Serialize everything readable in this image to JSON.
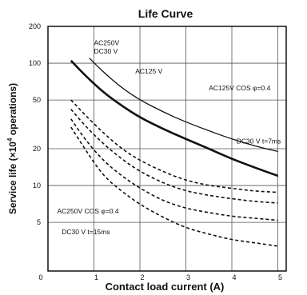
{
  "chart_data": {
    "type": "line",
    "title": "Life Curve",
    "xlabel": "Contact load current (A)",
    "ylabel_prefix": "Service life (×10",
    "ylabel_exp": "4",
    "ylabel_suffix": " operations)",
    "xlim": [
      0,
      6
    ],
    "ylim": [
      0,
      200
    ],
    "yscale": "log-like",
    "x_ticks": [
      "0",
      "1",
      "2",
      "3",
      "4",
      "5"
    ],
    "y_ticks": [
      "5",
      "10",
      "20",
      "50",
      "100",
      "200"
    ],
    "y_tick_values": [
      5,
      10,
      20,
      50,
      100,
      200
    ],
    "grid": true,
    "series": [
      {
        "name": "AC250V DC30 V",
        "style": "solid",
        "weight": "bold",
        "x": [
          0.5,
          0.8,
          1.2,
          1.6,
          2.0,
          2.5,
          3.0,
          3.5,
          4.0,
          4.5,
          5.0
        ],
        "y": [
          105,
          80,
          58,
          45,
          36,
          29,
          24,
          20,
          16.5,
          14,
          12
        ]
      },
      {
        "name": "AC125 V",
        "style": "solid",
        "weight": "thin",
        "x": [
          0.9,
          1.2,
          1.6,
          2.0,
          2.5,
          3.0,
          3.5,
          4.0,
          4.5,
          5.0
        ],
        "y": [
          110,
          85,
          63,
          50,
          40,
          33,
          28,
          24,
          21,
          19
        ]
      },
      {
        "name": "",
        "style": "dashed",
        "x": [
          0.5,
          0.8,
          1.2,
          1.6,
          2.0,
          2.5,
          3.0,
          3.5,
          4.0,
          4.5,
          5.0
        ],
        "y": [
          50,
          38,
          27,
          20,
          16,
          13,
          11,
          10,
          9.5,
          9,
          8.8
        ]
      },
      {
        "name": "",
        "style": "dashed",
        "x": [
          0.5,
          0.8,
          1.2,
          1.6,
          2.0,
          2.5,
          3.0,
          3.5,
          4.0,
          4.5,
          5.0
        ],
        "y": [
          42,
          31,
          22,
          16.5,
          13,
          10.5,
          9,
          8.3,
          7.8,
          7.4,
          7.2
        ]
      },
      {
        "name": "",
        "style": "dashed",
        "x": [
          0.5,
          0.8,
          1.2,
          1.6,
          2.0,
          2.5,
          3.0,
          3.5,
          4.0,
          4.5,
          5.0
        ],
        "y": [
          35,
          24,
          16,
          12,
          9.5,
          7.5,
          6.5,
          6,
          5.6,
          5.4,
          5.2
        ]
      },
      {
        "name": "",
        "style": "dashed",
        "x": [
          0.5,
          0.8,
          1.2,
          1.6,
          2.0,
          2.5,
          3.0,
          3.5,
          4.0,
          4.5,
          5.0
        ],
        "y": [
          30,
          20,
          12,
          9,
          7,
          5.5,
          4.5,
          4,
          3.6,
          3.4,
          3.2
        ]
      }
    ],
    "annotations": [
      {
        "text": "AC250V",
        "x": 1.0,
        "y": 140
      },
      {
        "text": "DC30 V",
        "x": 1.0,
        "y": 120
      },
      {
        "text": "AC125 V",
        "x": 1.9,
        "y": 82
      },
      {
        "text": "AC125V COS φ=0.4",
        "x": 3.5,
        "y": 60
      },
      {
        "text": "DC30 V t=7ms",
        "x": 4.1,
        "y": 22
      },
      {
        "text": "AC250V COS φ=0.4",
        "x": 0.2,
        "y": 5.9
      },
      {
        "text": "DC30 V t=15ms",
        "x": 0.3,
        "y": 4.0
      }
    ]
  }
}
